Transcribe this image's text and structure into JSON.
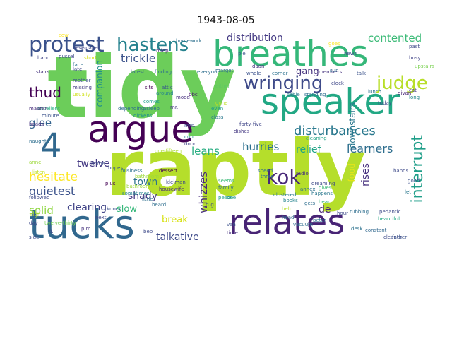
{
  "title": "1943-08-05",
  "cloud": {
    "words": [
      {
        "text": "raptly",
        "color": "#b5de2b"
      },
      {
        "text": "tidy",
        "color": "#6ccd5a"
      },
      {
        "text": "breathes",
        "color": "#35b779"
      },
      {
        "text": "speaker",
        "color": "#22a884"
      },
      {
        "text": "argue",
        "color": "#440154"
      },
      {
        "text": "tucks",
        "color": "#31688e"
      },
      {
        "text": "relates",
        "color": "#482475"
      },
      {
        "text": "4",
        "color": "#31688e"
      },
      {
        "text": "protest",
        "color": "#3b528b"
      },
      {
        "text": "hastens",
        "color": "#26828e"
      },
      {
        "text": "wringing",
        "color": "#3e4a89"
      },
      {
        "text": "judge",
        "color": "#b8de29"
      },
      {
        "text": "kok",
        "color": "#482878"
      },
      {
        "text": "interrupt",
        "color": "#1f9e89"
      },
      {
        "text": "disturbances",
        "color": "#2a788e"
      },
      {
        "text": "thud",
        "color": "#440154"
      },
      {
        "text": "distribution",
        "color": "#443a83"
      },
      {
        "text": "contented",
        "color": "#3aba76"
      },
      {
        "text": "trickle",
        "color": "#3b528b"
      },
      {
        "text": "glee",
        "color": "#33638d"
      },
      {
        "text": "solid",
        "color": "#90d743"
      },
      {
        "text": "gang",
        "color": "#46337e"
      },
      {
        "text": "hurries",
        "color": "#2d708e"
      },
      {
        "text": "learners",
        "color": "#2e6e8e"
      },
      {
        "text": "leans",
        "color": "#27ad81"
      },
      {
        "text": "relief",
        "color": "#20a486"
      },
      {
        "text": "twelve",
        "color": "#443983"
      },
      {
        "text": "hesitate",
        "color": "#fde725"
      },
      {
        "text": "quietest",
        "color": "#3b528b"
      },
      {
        "text": "town",
        "color": "#2c728e"
      },
      {
        "text": "shady",
        "color": "#453781"
      },
      {
        "text": "clearing",
        "color": "#414487"
      },
      {
        "text": "slow",
        "color": "#35b779"
      },
      {
        "text": "break",
        "color": "#d8e219"
      },
      {
        "text": "talkative",
        "color": "#3e4a89"
      },
      {
        "text": "whizzes",
        "color": "#472d7b"
      },
      {
        "text": "de",
        "color": "#482475"
      },
      {
        "text": "rises",
        "color": "#46307e"
      },
      {
        "text": "food",
        "color": "#e5e419"
      },
      {
        "text": "downstairs",
        "color": "#2a788e"
      },
      {
        "text": "companion",
        "color": "#21918c"
      },
      {
        "text": "p.m.",
        "color": "#46337e"
      },
      {
        "text": "radio",
        "color": "#46327e"
      },
      {
        "text": "forty-five",
        "color": "#404688"
      },
      {
        "text": "one-fifteen",
        "color": "#addc30"
      },
      {
        "text": "twelve-thirty",
        "color": "#73d056"
      },
      {
        "text": "homework",
        "color": "#2d708e"
      },
      {
        "text": "newspaper",
        "color": "#404688"
      },
      {
        "text": "mother",
        "color": "#3b528b"
      },
      {
        "text": "missing",
        "color": "#433e85"
      },
      {
        "text": "excellent",
        "color": "#26ad81"
      },
      {
        "text": "usually",
        "color": "#d0e11c"
      },
      {
        "text": "minute",
        "color": "#3b528b"
      },
      {
        "text": "maaren",
        "color": "#472d7b"
      },
      {
        "text": "heads",
        "color": "#46327e"
      },
      {
        "text": "followed",
        "color": "#3e4a89"
      },
      {
        "text": "business",
        "color": "#2c728e"
      },
      {
        "text": "dessert",
        "color": "#440154"
      },
      {
        "text": "bathroom",
        "color": "#9dd93b"
      },
      {
        "text": "housewife",
        "color": "#482878"
      },
      {
        "text": "kleiman",
        "color": "#3f4889"
      },
      {
        "text": "sometimes",
        "color": "#25848e"
      },
      {
        "text": "family",
        "color": "#31688e"
      },
      {
        "text": "peace",
        "color": "#1fa188"
      },
      {
        "text": "seems",
        "color": "#3aba76"
      },
      {
        "text": "even",
        "color": "#1e9b8a"
      },
      {
        "text": "class",
        "color": "#2a788e"
      },
      {
        "text": "gone",
        "color": "#bddf26"
      },
      {
        "text": "dishes",
        "color": "#453882"
      },
      {
        "text": "cup",
        "color": "#228c8d"
      },
      {
        "text": "door",
        "color": "#414487"
      },
      {
        "text": "mrs.",
        "color": "#3e4989"
      },
      {
        "text": "dickens",
        "color": "#20928c"
      },
      {
        "text": "mood",
        "color": "#46307e"
      },
      {
        "text": "attic",
        "color": "#38588c"
      },
      {
        "text": "around",
        "color": "#25848e"
      },
      {
        "text": "bbc",
        "color": "#48186a"
      },
      {
        "text": "either",
        "color": "#5ec962"
      },
      {
        "text": "whole",
        "color": "#3b528b"
      },
      {
        "text": "daan",
        "color": "#46337e"
      },
      {
        "text": "corner",
        "color": "#2c728e"
      },
      {
        "text": "table",
        "color": "#2a788e"
      },
      {
        "text": "standing",
        "color": "#2e6e8e"
      },
      {
        "text": "clock",
        "color": "#3f4889"
      },
      {
        "text": "members",
        "color": "#46337e"
      },
      {
        "text": "talk",
        "color": "#3b528b"
      },
      {
        "text": "lunch",
        "color": "#2d708e"
      },
      {
        "text": "divan",
        "color": "#482475"
      },
      {
        "text": "cat",
        "color": "#443983"
      },
      {
        "text": "long",
        "color": "#23898e"
      },
      {
        "text": "today",
        "color": "#3f4889"
      },
      {
        "text": "good",
        "color": "#3b528b"
      },
      {
        "text": "let",
        "color": "#2a788e"
      },
      {
        "text": "pedantic",
        "color": "#3e4a89"
      },
      {
        "text": "constant",
        "color": "#31688e"
      },
      {
        "text": "desk",
        "color": "#2c728e"
      },
      {
        "text": "books",
        "color": "#25848e"
      },
      {
        "text": "help",
        "color": "#b8de29"
      },
      {
        "text": "hear",
        "color": "#35b779"
      },
      {
        "text": "goes",
        "color": "#fde725"
      },
      {
        "text": "past",
        "color": "#3e4a89"
      },
      {
        "text": "busy",
        "color": "#414487"
      },
      {
        "text": "upstairs",
        "color": "#7ad151"
      },
      {
        "text": "hand",
        "color": "#414487"
      },
      {
        "text": "stairs",
        "color": "#46337e"
      },
      {
        "text": "latest",
        "color": "#33638d"
      },
      {
        "text": "face",
        "color": "#2d708e"
      },
      {
        "text": "miep",
        "color": "#482878"
      },
      {
        "text": "knock",
        "color": "#3b528b"
      },
      {
        "text": "plus",
        "color": "#440154"
      },
      {
        "text": "hopes",
        "color": "#3b528b"
      },
      {
        "text": "short",
        "color": "#d8e219"
      },
      {
        "text": "pie",
        "color": "#3b528b"
      },
      {
        "text": "sits",
        "color": "#440154"
      },
      {
        "text": "comes",
        "color": "#1f9e89"
      },
      {
        "text": "asleep",
        "color": "#2d708e"
      },
      {
        "text": "next",
        "color": "#404688"
      },
      {
        "text": "anne",
        "color": "#9dd93b"
      },
      {
        "text": "listen",
        "color": "#c2df23"
      },
      {
        "text": "rug",
        "color": "#3e4a89"
      },
      {
        "text": "van",
        "color": "#3b528b"
      },
      {
        "text": "time",
        "color": "#46307e"
      },
      {
        "text": "one",
        "color": "#21918c"
      },
      {
        "text": "clustered",
        "color": "#2a788e"
      },
      {
        "text": "dreaming",
        "color": "#3e4a89"
      },
      {
        "text": "happens",
        "color": "#2a788e"
      },
      {
        "text": "gives",
        "color": "#3aba76"
      },
      {
        "text": "bep",
        "color": "#3e4a89"
      },
      {
        "text": "head",
        "color": "#31688e"
      },
      {
        "text": "hour",
        "color": "#3e4989"
      },
      {
        "text": "rubbing",
        "color": "#2e6e8e"
      },
      {
        "text": "beautiful",
        "color": "#22a884"
      },
      {
        "text": "cleaner",
        "color": "#3e4a89"
      },
      {
        "text": "father",
        "color": "#3b528b"
      },
      {
        "text": "hands",
        "color": "#3e4a89"
      },
      {
        "text": "sigh",
        "color": "#b5de2b"
      },
      {
        "text": "day",
        "color": "#3e4a89"
      },
      {
        "text": "d.",
        "color": "#3e4a89"
      },
      {
        "text": "side",
        "color": "#3e4a89"
      },
      {
        "text": "home",
        "color": "#3e4a89"
      },
      {
        "text": "mr.",
        "color": "#453781"
      },
      {
        "text": "depending",
        "color": "#2e6e8e"
      },
      {
        "text": "cleaning",
        "color": "#20a386"
      },
      {
        "text": "cow",
        "color": "#fde725"
      },
      {
        "text": "late",
        "color": "#3e4a89"
      },
      {
        "text": "pussel",
        "color": "#3e4a89"
      },
      {
        "text": "news",
        "color": "#3e4a89"
      },
      {
        "text": "bathroom",
        "color": "#9dd93b"
      },
      {
        "text": "annex",
        "color": "#2e6e8e"
      },
      {
        "text": "speed",
        "color": "#2e6e8e"
      },
      {
        "text": "three",
        "color": "#2e6e8e"
      },
      {
        "text": "gets",
        "color": "#2e6e8e"
      },
      {
        "text": "finding",
        "color": "#2e6e8e"
      },
      {
        "text": "margot",
        "color": "#2e6e8e"
      },
      {
        "text": "everyone",
        "color": "#2e6e8e"
      },
      {
        "text": "peter",
        "color": "#2e6e8e"
      },
      {
        "text": "little",
        "color": "#2e6e8e"
      },
      {
        "text": "heard",
        "color": "#2e6e8e"
      },
      {
        "text": "vacuum",
        "color": "#2e6e8e"
      },
      {
        "text": "naughty",
        "color": "#2e6e8e"
      },
      {
        "text": "sun",
        "color": "#2e6e8e"
      }
    ]
  }
}
